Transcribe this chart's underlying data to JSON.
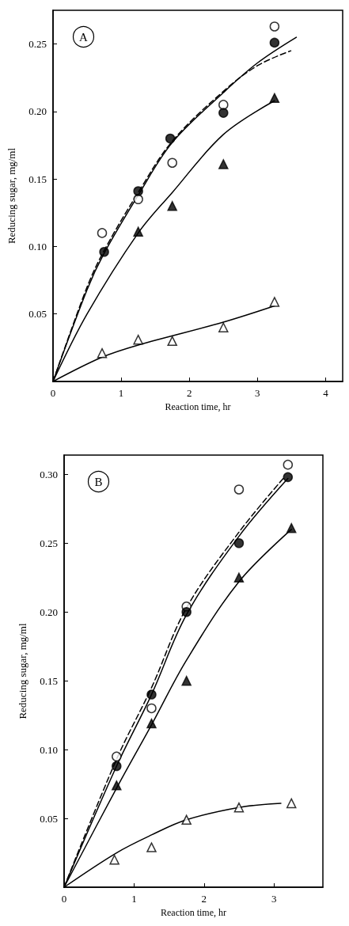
{
  "chart_data": [
    {
      "type": "scatter",
      "annotations": [
        "A"
      ],
      "xlabel": "Reaction time, hr",
      "ylabel": "Reducing sugar, mg/ml",
      "xlim": [
        0,
        4.25
      ],
      "xticks": [
        0,
        1,
        2,
        3,
        4
      ],
      "ylim": [
        0,
        0.275
      ],
      "yticks": [
        {
          "value": 0.05,
          "label": "0.05"
        },
        {
          "value": 0.1,
          "label": "0.10"
        },
        {
          "value": 0.15,
          "label": "0.15"
        },
        {
          "value": 0.2,
          "label": "0.20"
        },
        {
          "value": 0.25,
          "label": "0.25"
        }
      ],
      "grid": false,
      "series": [
        {
          "marker": "circle",
          "color": "#ffffff",
          "x": [
            0.72,
            1.25,
            1.75,
            2.5,
            3.25
          ],
          "values": [
            0.11,
            0.135,
            0.162,
            0.205,
            0.263
          ]
        },
        {
          "marker": "circle",
          "color": "#000000",
          "x": [
            0.75,
            1.25,
            1.72,
            2.5,
            3.25
          ],
          "values": [
            0.096,
            0.141,
            0.18,
            0.199,
            0.251
          ]
        },
        {
          "marker": "triangle",
          "color": "#000000",
          "x": [
            1.25,
            1.75,
            2.5,
            3.25
          ],
          "values": [
            0.111,
            0.13,
            0.161,
            0.21
          ]
        },
        {
          "marker": "triangle",
          "color": "#ffffff",
          "x": [
            0.72,
            1.25,
            1.75,
            2.5,
            3.25
          ],
          "values": [
            0.021,
            0.031,
            0.03,
            0.04,
            0.059
          ]
        },
        {
          "type": "line",
          "marker": "none",
          "line_style": "solid",
          "color": "#000000",
          "x": [
            0,
            0.5,
            0.75,
            1.25,
            1.75,
            2.5,
            3,
            3.57
          ],
          "values": [
            0,
            0.068,
            0.095,
            0.138,
            0.177,
            0.214,
            0.236,
            0.255
          ]
        },
        {
          "type": "line",
          "marker": "none",
          "line_style": "dashed",
          "color": "#000000",
          "x": [
            0,
            0.5,
            0.75,
            1.25,
            1.75,
            2.5,
            3,
            3.49
          ],
          "values": [
            0,
            0.07,
            0.097,
            0.14,
            0.178,
            0.215,
            0.234,
            0.245
          ]
        },
        {
          "type": "line",
          "marker": "none",
          "line_style": "solid",
          "color": "#000000",
          "x": [
            0,
            0.5,
            1.25,
            1.75,
            2.5,
            3.25
          ],
          "values": [
            0,
            0.05,
            0.11,
            0.14,
            0.183,
            0.208
          ]
        },
        {
          "type": "line",
          "marker": "none",
          "line_style": "solid",
          "color": "#000000",
          "x": [
            0,
            0.72,
            1.25,
            2.5,
            3.25
          ],
          "values": [
            0,
            0.018,
            0.027,
            0.044,
            0.056
          ]
        }
      ]
    },
    {
      "type": "scatter",
      "annotations": [
        "B"
      ],
      "xlabel": "Reaction time, hr",
      "ylabel": "Reducing sugar, mg/ml",
      "xlim": [
        0,
        3.7
      ],
      "xticks": [
        0,
        1,
        2,
        3
      ],
      "ylim": [
        0,
        0.314
      ],
      "yticks": [
        {
          "value": 0.05,
          "label": "0.05"
        },
        {
          "value": 0.1,
          "label": "0.10"
        },
        {
          "value": 0.15,
          "label": "0.15"
        },
        {
          "value": 0.2,
          "label": "0.20"
        },
        {
          "value": 0.25,
          "label": "0.25"
        },
        {
          "value": 0.3,
          "label": "0.30"
        }
      ],
      "grid": false,
      "series": [
        {
          "marker": "circle",
          "color": "#ffffff",
          "x": [
            0.75,
            1.25,
            1.75,
            2.5,
            3.2
          ],
          "values": [
            0.095,
            0.13,
            0.204,
            0.289,
            0.307
          ]
        },
        {
          "marker": "circle",
          "color": "#000000",
          "x": [
            0.75,
            1.25,
            1.75,
            2.5,
            3.2
          ],
          "values": [
            0.088,
            0.14,
            0.2,
            0.25,
            0.298
          ]
        },
        {
          "marker": "triangle",
          "color": "#000000",
          "x": [
            0.75,
            1.25,
            1.75,
            2.5,
            3.25
          ],
          "values": [
            0.074,
            0.119,
            0.15,
            0.225,
            0.261
          ]
        },
        {
          "marker": "triangle",
          "color": "#ffffff",
          "x": [
            0.72,
            1.25,
            1.75,
            2.5,
            3.25
          ],
          "values": [
            0.02,
            0.029,
            0.049,
            0.058,
            0.061
          ]
        },
        {
          "type": "line",
          "marker": "none",
          "line_style": "solid",
          "color": "#000000",
          "x": [
            0,
            0.75,
            1.25,
            1.75,
            2.5,
            3.2
          ],
          "values": [
            0,
            0.088,
            0.14,
            0.198,
            0.255,
            0.297
          ]
        },
        {
          "type": "line",
          "marker": "none",
          "line_style": "dashed",
          "color": "#000000",
          "x": [
            0,
            0.75,
            1.25,
            1.75,
            2.5,
            3.15
          ],
          "values": [
            0,
            0.093,
            0.145,
            0.203,
            0.258,
            0.298
          ]
        },
        {
          "type": "line",
          "marker": "none",
          "line_style": "solid",
          "color": "#000000",
          "x": [
            0,
            0.75,
            1.25,
            1.75,
            2.5,
            3.25
          ],
          "values": [
            0,
            0.072,
            0.118,
            0.165,
            0.222,
            0.26
          ]
        },
        {
          "type": "line",
          "marker": "none",
          "line_style": "solid",
          "color": "#000000",
          "x": [
            0,
            0.75,
            1.25,
            1.75,
            2.5,
            3.1
          ],
          "values": [
            0,
            0.025,
            0.038,
            0.049,
            0.058,
            0.061
          ]
        }
      ]
    }
  ]
}
